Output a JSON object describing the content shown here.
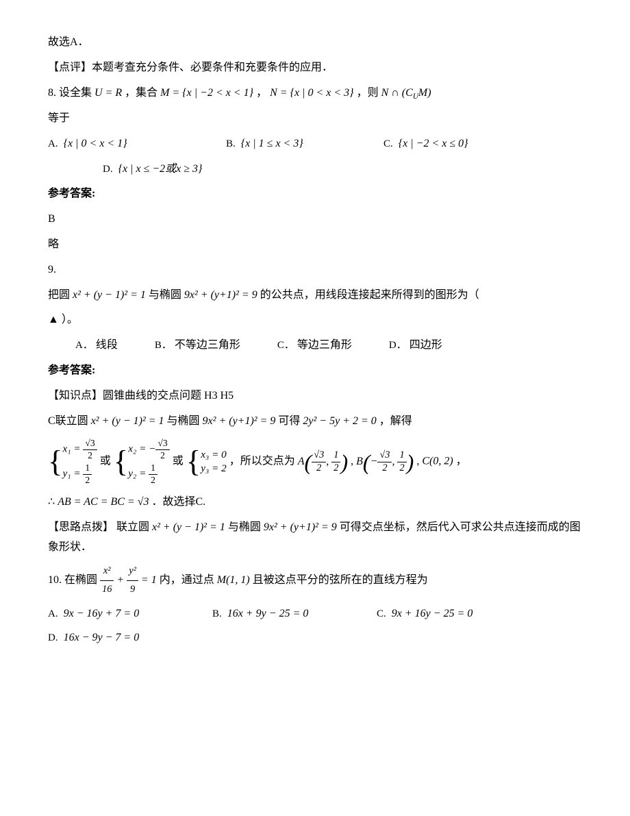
{
  "intro1": "故选A．",
  "comment1_label": "【点评】",
  "comment1_text": "本题考查充分条件、必要条件和充要条件的应用．",
  "q8": {
    "number": "8.",
    "stem1": "设全集 ",
    "f_UR": "U = R",
    "stem2": "，集合 ",
    "f_M": "M = {x | −2 < x < 1}",
    "stem3": "，",
    "f_N": "N = {x | 0 < x < 3}",
    "stem4": "，则 ",
    "f_expr": "N ∩ (C",
    "f_expr_sub": "U",
    "f_expr2": "M)",
    "stem5": "等于",
    "A_label": "A.",
    "A": "{x | 0 < x < 1}",
    "B_label": "B.",
    "B": "{x | 1 ≤ x < 3}",
    "C_label": "C.",
    "C": "{x | −2 < x ≤ 0}",
    "D_label": "D.",
    "D": "{x | x ≤ −2或x ≥ 3}"
  },
  "ans_label": "参考答案:",
  "q8_ans": "B",
  "q8_brief": "略",
  "q9": {
    "number": "9.",
    "stem1": "把圆 ",
    "f_circle": "x² + (y − 1)² = 1",
    "stem2": " 与椭圆 ",
    "f_ellipse": "9x² + (y+1)² = 9",
    "stem3": " 的公共点，用线段连接起来所得到的图形为（",
    "blank": "▲",
    "stem4": "）。",
    "A_label": "A．",
    "A": "线段",
    "B_label": "B．",
    "B": "不等边三角形",
    "C_label": "C．",
    "C": "等边三角形",
    "D_label": "D．",
    "D": "四边形"
  },
  "q9_exp": {
    "kp_label": "【知识点】",
    "kp_text": "圆锥曲线的交点问题   H3   H5",
    "line1a": "C联立圆 ",
    "line1_circle": "x² + (y − 1)² = 1",
    "line1b": " 与椭圆 ",
    "line1_ellipse": "9x² + (y+1)² = 9",
    "line1c": " 可得 ",
    "line1_eq": "2y² − 5y + 2 = 0",
    "line1d": " ，解得",
    "sol1_x": "x₁ = ",
    "sol1_x_num": "√3",
    "sol1_x_den": "2",
    "sol1_y": "y₁ = ",
    "sol1_y_num": "1",
    "sol1_y_den": "2",
    "or": "或",
    "sol2_x": "x₂ = −",
    "sol2_x_num": "√3",
    "sol2_x_den": "2",
    "sol2_y": "y₂ = ",
    "sol2_y_num": "1",
    "sol2_y_den": "2",
    "sol3_x": "x₃ = 0",
    "sol3_y": "y₃ = 2",
    "line2a": "，所以交点为 ",
    "ptA": "A",
    "ptA_x_num": "√3",
    "ptA_x_den": "2",
    "ptA_y_num": "1",
    "ptA_y_den": "2",
    "ptB": "B",
    "ptB_x_num": "√3",
    "ptB_x_den": "2",
    "ptB_y_num": "1",
    "ptB_y_den": "2",
    "ptC": "C(0, 2)",
    "line3a": "∴ ",
    "line3_eq": "AB = AC = BC = √3",
    "line3b": "．故选择C.",
    "tip_label": "【思路点拨】",
    "tip1": "联立圆 ",
    "tip_circle": "x² + (y − 1)² = 1",
    "tip2": " 与椭圆 ",
    "tip_ellipse": "9x² + (y+1)² = 9",
    "tip3": " 可得交点坐标，然后代入可求公共点连接而成的图象形状．"
  },
  "q10": {
    "number": "10.",
    "stem1": "在椭圆 ",
    "f_num_x": "x²",
    "f_den_x": "16",
    "f_plus": " + ",
    "f_num_y": "y²",
    "f_den_y": "9",
    "f_eq": " = 1",
    "stem2": " 内，通过点 ",
    "f_M": "M(1, 1)",
    "stem3": " 且被这点平分的弦所在的直线方程为",
    "A_label": "A.",
    "A": "9x − 16y + 7 = 0",
    "B_label": "B.",
    "B": "16x + 9y − 25 = 0",
    "C_label": "C.",
    "C": "9x + 16y − 25 = 0",
    "D_label": "D.",
    "D": "16x − 9y − 7 = 0"
  }
}
